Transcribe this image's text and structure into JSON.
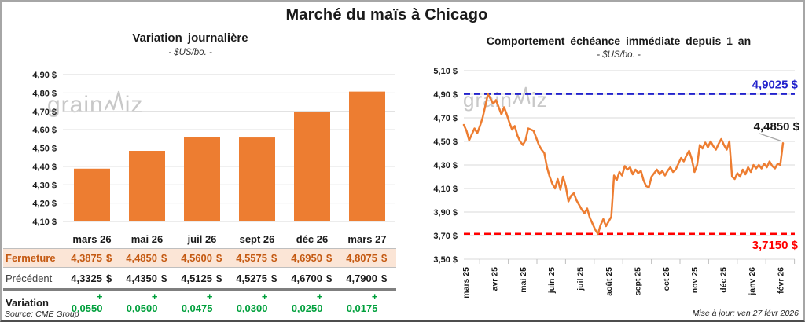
{
  "title": "Marché du maïs à Chicago",
  "watermark": {
    "pre": "grain",
    "post": "iz"
  },
  "source": "Source: CME Group",
  "updated": "Mise à jour: ven 27 févr 2026",
  "colors": {
    "orange": "#ED7D31",
    "blue": "#2222CC",
    "red": "#FF0000",
    "green": "#00A03C",
    "close_text": "#C45911",
    "close_bg": "#FBE5D6",
    "grid": "#D9D9D9",
    "axis_text": "#1A1A1A",
    "leader": "#A6A6A6",
    "tick": "#BFBFBF"
  },
  "chart_data": [
    {
      "type": "bar",
      "title": "Variation journalière",
      "subtitle": "- $US/bo. -",
      "categories": [
        "mars 26",
        "mai 26",
        "juil 26",
        "sept 26",
        "déc 26",
        "mars 27"
      ],
      "values": [
        4.3875,
        4.485,
        4.56,
        4.5575,
        4.695,
        4.8075
      ],
      "ylim": [
        4.1,
        4.9
      ],
      "ytick_step": 0.1,
      "ytick_labels": [
        "4,90 $",
        "4,80 $",
        "4,70 $",
        "4,60 $",
        "4,50 $",
        "4,40 $",
        "4,30 $",
        "4,20 $",
        "4,10 $"
      ],
      "grid": true,
      "legend": "none"
    },
    {
      "type": "line",
      "title": "Comportement échéance immédiate depuis 1 an",
      "subtitle": "- $US/bo. -",
      "x_labels": [
        "mars 25",
        "avr 25",
        "mai 25",
        "juin 25",
        "juil 25",
        "août 25",
        "sept 25",
        "oct 25",
        "nov 25",
        "déc 25",
        "janv 26",
        "févr 26"
      ],
      "values": [
        4.64,
        4.59,
        4.51,
        4.56,
        4.61,
        4.57,
        4.63,
        4.7,
        4.8,
        4.9,
        4.86,
        4.82,
        4.85,
        4.79,
        4.73,
        4.79,
        4.73,
        4.66,
        4.6,
        4.63,
        4.55,
        4.5,
        4.47,
        4.51,
        4.61,
        4.6,
        4.59,
        4.53,
        4.47,
        4.43,
        4.4,
        4.28,
        4.2,
        4.14,
        4.1,
        4.18,
        4.09,
        4.2,
        4.12,
        3.99,
        4.04,
        4.06,
        4.0,
        3.96,
        3.92,
        3.89,
        3.93,
        3.85,
        3.8,
        3.75,
        3.715,
        3.79,
        3.84,
        3.78,
        3.82,
        3.86,
        4.21,
        4.17,
        4.24,
        4.21,
        4.29,
        4.26,
        4.28,
        4.22,
        4.26,
        4.23,
        4.25,
        4.17,
        4.12,
        4.11,
        4.2,
        4.23,
        4.26,
        4.22,
        4.25,
        4.21,
        4.25,
        4.28,
        4.24,
        4.26,
        4.31,
        4.36,
        4.33,
        4.38,
        4.42,
        4.35,
        4.24,
        4.3,
        4.47,
        4.44,
        4.49,
        4.45,
        4.5,
        4.46,
        4.43,
        4.48,
        4.52,
        4.47,
        4.43,
        4.5,
        4.2,
        4.18,
        4.23,
        4.2,
        4.26,
        4.22,
        4.28,
        4.24,
        4.3,
        4.27,
        4.3,
        4.27,
        4.31,
        4.28,
        4.33,
        4.29,
        4.27,
        4.31,
        4.3,
        4.485
      ],
      "ylim": [
        3.5,
        5.1
      ],
      "ytick_step": 0.2,
      "ytick_labels": [
        "5,10 $",
        "4,90 $",
        "4,70 $",
        "4,50 $",
        "4,30 $",
        "4,10 $",
        "3,90 $",
        "3,70 $",
        "3,50 $"
      ],
      "grid": true,
      "legend": "none",
      "hlines": [
        {
          "value": 4.9025,
          "label": "4,9025 $",
          "color": "#2222CC"
        },
        {
          "value": 3.715,
          "label": "3,7150 $",
          "color": "#FF0000"
        }
      ],
      "end_label": {
        "value": 4.485,
        "label": "4,4850 $",
        "color": "#1A1A1A"
      }
    }
  ],
  "table": {
    "rows": [
      {
        "style": "close",
        "label": "Fermeture",
        "values": [
          "4,3875",
          "4,4850",
          "4,5600",
          "4,5575",
          "4,6950",
          "4,8075"
        ],
        "suffix": "$"
      },
      {
        "style": "prev",
        "label": "Précédent",
        "values": [
          "4,3325",
          "4,4350",
          "4,5125",
          "4,5275",
          "4,6700",
          "4,7900"
        ],
        "suffix": "$"
      },
      {
        "style": "var",
        "label": "Variation",
        "values": [
          "+ 0,0550",
          "+ 0,0500",
          "+ 0,0475",
          "+ 0,0300",
          "+ 0,0250",
          "+ 0,0175"
        ],
        "suffix": ""
      }
    ]
  }
}
